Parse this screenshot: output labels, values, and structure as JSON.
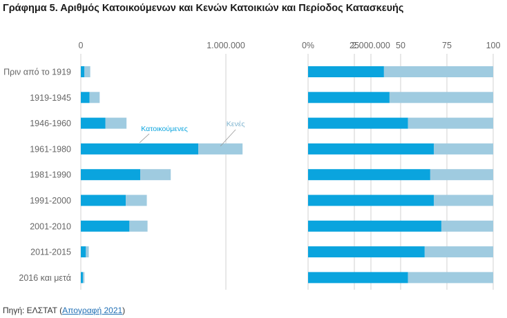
{
  "title": "Γράφημα 5. Αριθμός Κατοικούμενων και Κενών Κατοικιών και Περίοδος Κατασκευής",
  "source": {
    "prefix": "Πηγή: ΕΛΣΤΑΤ (",
    "link_text": "Απογραφή 2021",
    "suffix": ")"
  },
  "colors": {
    "occupied": "#0aa4de",
    "vacant": "#9fcbe0",
    "grid": "#d0d0d0",
    "axis_text": "#666666"
  },
  "chart_data": [
    {
      "type": "bar",
      "orientation": "horizontal",
      "stacked": true,
      "categories": [
        "Πριν από το 1919",
        "1919-1945",
        "1946-1960",
        "1961-1980",
        "1981-1990",
        "1991-2000",
        "2001-2010",
        "2011-2015",
        "2016 και μετά"
      ],
      "series": [
        {
          "name": "Κατοικούμενες",
          "values": [
            25000,
            60000,
            170000,
            810000,
            410000,
            310000,
            335000,
            35000,
            15000
          ]
        },
        {
          "name": "Κενές",
          "values": [
            40000,
            70000,
            145000,
            305000,
            210000,
            145000,
            125000,
            20000,
            10000
          ]
        }
      ],
      "xlim": [
        0,
        2800000
      ],
      "xticks": [
        0,
        1000000,
        2000000
      ],
      "xtick_labels": [
        "0",
        "1.000.000",
        "2.000.000"
      ],
      "annotations": [
        {
          "text": "Κατοικούμενες",
          "series": "Κατοικούμενες",
          "category": "1961-1980"
        },
        {
          "text": "Κενές",
          "series": "Κενές",
          "category": "1961-1980"
        }
      ]
    },
    {
      "type": "bar",
      "orientation": "horizontal",
      "stacked": true,
      "percent": true,
      "categories": [
        "Πριν από το 1919",
        "1919-1945",
        "1946-1960",
        "1961-1980",
        "1981-1990",
        "1991-2000",
        "2001-2010",
        "2011-2015",
        "2016 και μετά"
      ],
      "series": [
        {
          "name": "Κατοικούμενες",
          "values": [
            41,
            44,
            54,
            68,
            66,
            68,
            72,
            63,
            54
          ]
        },
        {
          "name": "Κενές",
          "values": [
            59,
            56,
            46,
            32,
            34,
            32,
            28,
            37,
            46
          ]
        }
      ],
      "xlim": [
        0,
        100
      ],
      "xticks": [
        0,
        25,
        50,
        75,
        100
      ],
      "xtick_labels": [
        "0%",
        "25",
        "50",
        "75",
        "100"
      ]
    }
  ]
}
